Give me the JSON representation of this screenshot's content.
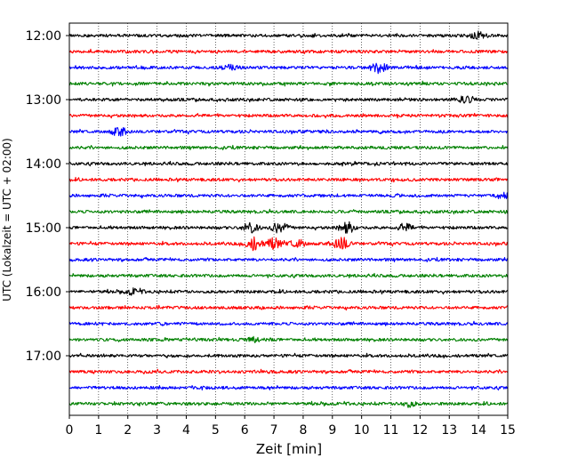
{
  "chart_data": {
    "type": "line",
    "title": "",
    "xlabel": "Zeit  [min]",
    "ylabel": "UTC (Lokalzeit = UTC + 02:00)",
    "xlim": [
      0,
      15
    ],
    "x_ticks": [
      "0",
      "1",
      "2",
      "3",
      "4",
      "5",
      "6",
      "7",
      "8",
      "9",
      "10",
      "11",
      "12",
      "13",
      "14",
      "15"
    ],
    "y_ticks": [
      "12:00",
      "13:00",
      "14:00",
      "15:00",
      "16:00",
      "17:00"
    ],
    "grid": "vertical dotted",
    "legend": "none",
    "trace_colors": [
      "#000000",
      "#ff0000",
      "#0000ff",
      "#008000"
    ],
    "row_start_times": [
      "12:00",
      "12:15",
      "12:30",
      "12:45",
      "13:00",
      "13:15",
      "13:30",
      "13:45",
      "14:00",
      "14:15",
      "14:30",
      "14:45",
      "15:00",
      "15:15",
      "15:30",
      "15:45",
      "16:00",
      "16:15",
      "16:30",
      "16:45",
      "17:00",
      "17:15",
      "17:30",
      "17:45"
    ],
    "events": [
      {
        "row": 0,
        "minute": 14.0,
        "amplitude": 0.5
      },
      {
        "row": 2,
        "minute": 5.5,
        "amplitude": 0.4
      },
      {
        "row": 2,
        "minute": 10.6,
        "amplitude": 1.0
      },
      {
        "row": 4,
        "minute": 13.6,
        "amplitude": 0.6
      },
      {
        "row": 6,
        "minute": 1.7,
        "amplitude": 0.6
      },
      {
        "row": 10,
        "minute": 14.8,
        "amplitude": 0.4
      },
      {
        "row": 12,
        "minute": 6.2,
        "amplitude": 0.7
      },
      {
        "row": 12,
        "minute": 7.2,
        "amplitude": 0.8
      },
      {
        "row": 12,
        "minute": 9.5,
        "amplitude": 0.8
      },
      {
        "row": 12,
        "minute": 11.5,
        "amplitude": 0.5
      },
      {
        "row": 13,
        "minute": 6.3,
        "amplitude": 0.9
      },
      {
        "row": 13,
        "minute": 7.0,
        "amplitude": 0.8
      },
      {
        "row": 13,
        "minute": 7.8,
        "amplitude": 0.6
      },
      {
        "row": 13,
        "minute": 9.3,
        "amplitude": 1.0
      },
      {
        "row": 16,
        "minute": 2.2,
        "amplitude": 0.4
      },
      {
        "row": 19,
        "minute": 6.3,
        "amplitude": 0.3
      },
      {
        "row": 23,
        "minute": 11.6,
        "amplitude": 0.4
      }
    ]
  }
}
